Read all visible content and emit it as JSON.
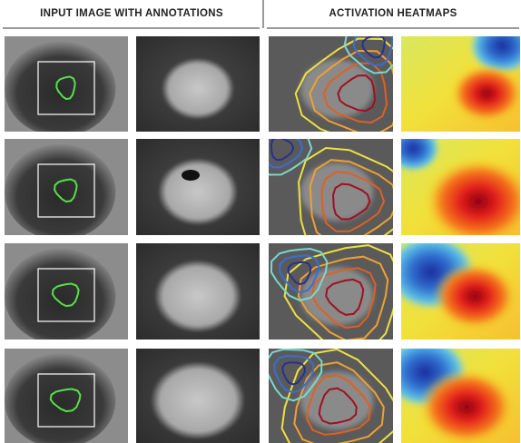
{
  "header": {
    "left_title": "INPUT IMAGE WITH ANNOTATIONS",
    "right_title": "ACTIVATION HEATMAPS"
  }
}
